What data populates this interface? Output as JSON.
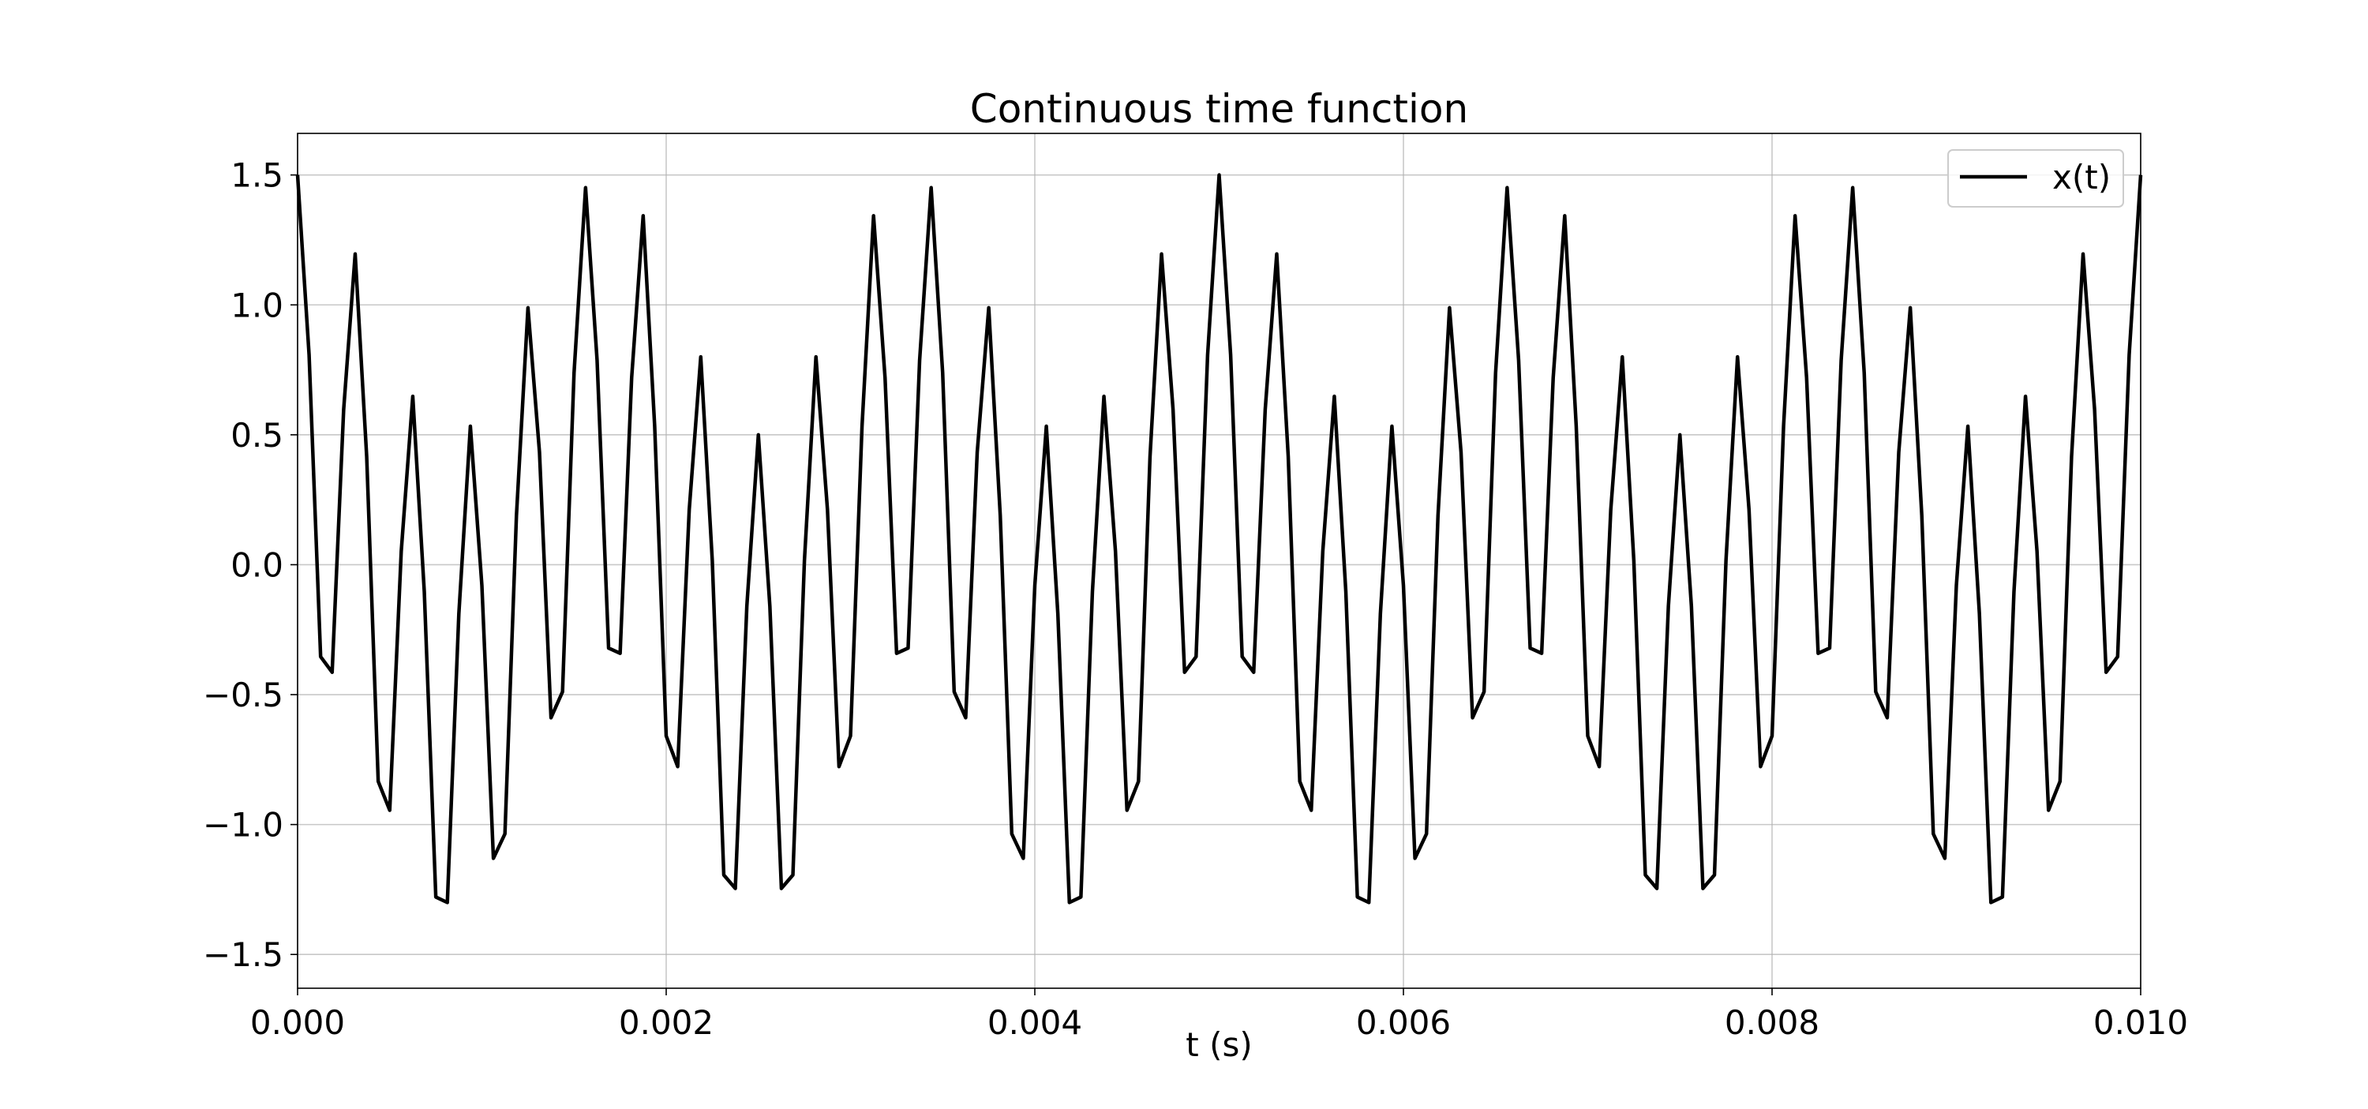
{
  "chart_data": {
    "type": "line",
    "title": "Continuous time function",
    "xlabel": "t (s)",
    "ylabel": "",
    "xlim": [
      0.0,
      0.01
    ],
    "ylim": [
      -1.63,
      1.66
    ],
    "grid": true,
    "legend": {
      "position": "top-right",
      "entries": [
        "x(t)"
      ]
    },
    "x_ticks": [
      0.0,
      0.002,
      0.004,
      0.006,
      0.008,
      0.01
    ],
    "x_tick_labels": [
      "0.000",
      "0.002",
      "0.004",
      "0.006",
      "0.008",
      "0.010"
    ],
    "y_ticks": [
      -1.5,
      -1.0,
      -0.5,
      0.0,
      0.5,
      1.0,
      1.5
    ],
    "y_tick_labels": [
      "−1.5",
      "−1.0",
      "−0.5",
      "0.0",
      "0.5",
      "1.0",
      "1.5"
    ],
    "series": [
      {
        "name": "x(t)",
        "color": "#000000",
        "x_start": 0.0,
        "x_step": 6.25e-05,
        "y": [
          1.5,
          0.807,
          -0.354,
          -0.414,
          0.597,
          1.196,
          0.416,
          -0.834,
          -0.945,
          0.052,
          0.648,
          -0.104,
          -1.279,
          -1.3,
          -0.189,
          0.533,
          -0.08,
          -1.13,
          -1.036,
          0.189,
          0.989,
          0.433,
          -0.589,
          -0.489,
          0.738,
          1.451,
          0.787,
          -0.321,
          -0.341,
          0.719,
          1.343,
          0.533,
          -0.659,
          -0.777,
          0.212,
          0.8,
          0.016,
          -1.194,
          -1.246,
          -0.16,
          0.5,
          -0.16,
          -1.246,
          -1.194,
          0.016,
          0.8,
          0.212,
          -0.777,
          -0.659,
          0.533,
          1.343,
          0.719,
          -0.341,
          -0.321,
          0.787,
          1.451,
          0.738,
          -0.489,
          -0.589,
          0.433,
          0.989,
          0.189,
          -1.036,
          -1.13,
          -0.08,
          0.533,
          -0.189,
          -1.3,
          -1.279,
          -0.104,
          0.648,
          0.052,
          -0.945,
          -0.834,
          0.416,
          1.196,
          0.597,
          -0.414,
          -0.354,
          0.807,
          1.5,
          0.807,
          -0.354,
          -0.414,
          0.597,
          1.196,
          0.416,
          -0.834,
          -0.945,
          0.052,
          0.648,
          -0.104,
          -1.279,
          -1.3,
          -0.189,
          0.533,
          -0.08,
          -1.13,
          -1.036,
          0.189,
          0.989,
          0.433,
          -0.589,
          -0.489,
          0.738,
          1.451,
          0.787,
          -0.321,
          -0.341,
          0.719,
          1.343,
          0.533,
          -0.659,
          -0.777,
          0.212,
          0.8,
          0.016,
          -1.194,
          -1.246,
          -0.16,
          0.5,
          -0.16,
          -1.246,
          -1.194,
          0.016,
          0.8,
          0.212,
          -0.777,
          -0.659,
          0.533,
          1.343,
          0.719,
          -0.341,
          -0.321,
          0.787,
          1.451,
          0.738,
          -0.489,
          -0.589,
          0.433,
          0.989,
          0.189,
          -1.036,
          -1.13,
          -0.08,
          0.533,
          -0.189,
          -1.3,
          -1.279,
          -0.104,
          0.648,
          0.052,
          -0.945,
          -0.834,
          0.416,
          1.196,
          0.597,
          -0.414,
          -0.354,
          0.807,
          1.5
        ]
      }
    ]
  }
}
